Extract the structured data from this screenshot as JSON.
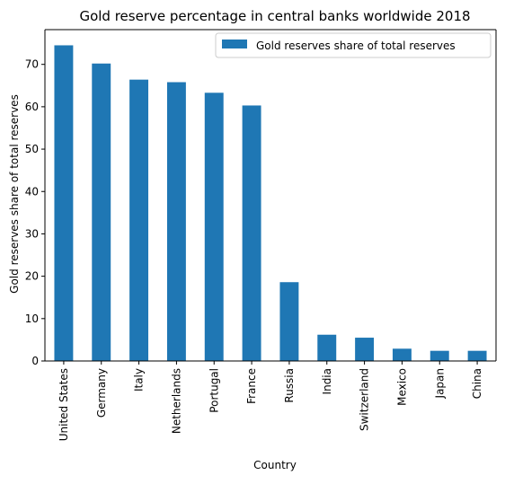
{
  "chart_data": {
    "type": "bar",
    "title": "Gold reserve percentage in central banks worldwide 2018",
    "xlabel": "Country",
    "ylabel": "Gold reserves share of total reserves",
    "categories": [
      "United States",
      "Germany",
      "Italy",
      "Netherlands",
      "Portugal",
      "France",
      "Russia",
      "India",
      "Switzerland",
      "Mexico",
      "Japan",
      "China"
    ],
    "series": [
      {
        "name": "Gold reserves share of total reserves",
        "color": "#1f77b4",
        "values": [
          74.5,
          70.2,
          66.4,
          65.8,
          63.3,
          60.3,
          18.6,
          6.2,
          5.5,
          2.9,
          2.4,
          2.4
        ]
      }
    ],
    "ylim": [
      0,
      78.2
    ],
    "yticks": [
      0,
      10,
      20,
      30,
      40,
      50,
      60,
      70
    ],
    "grid": false,
    "legend_position": "top-right"
  }
}
